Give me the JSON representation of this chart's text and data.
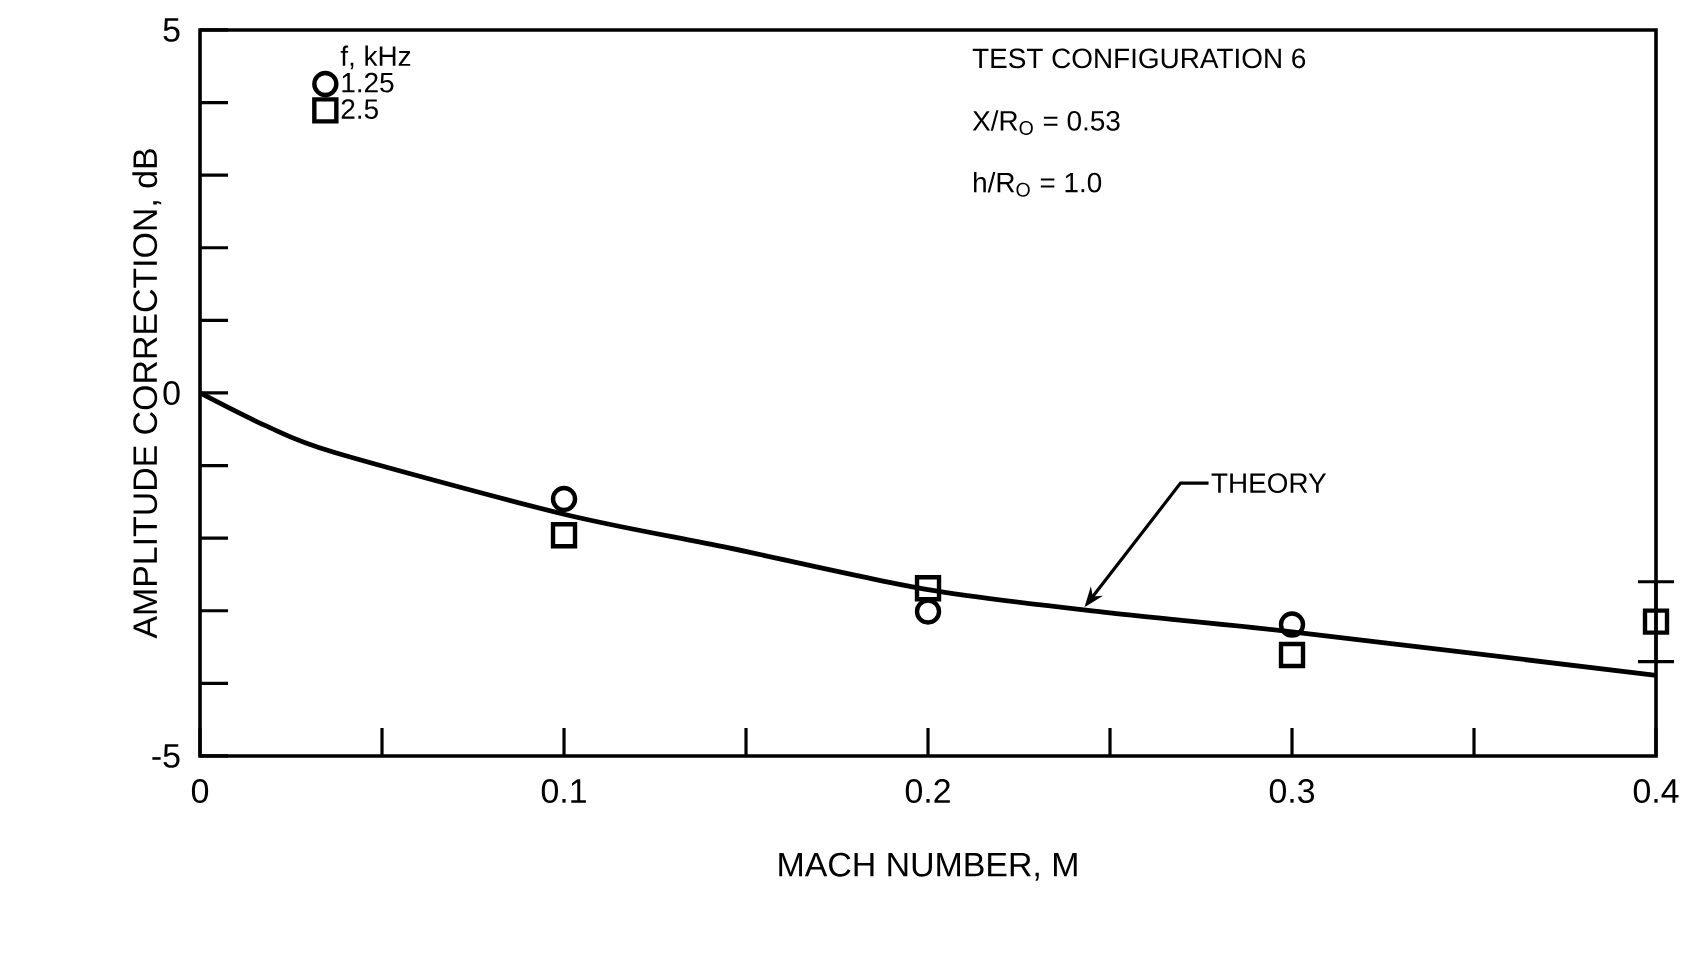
{
  "chart_data": {
    "type": "scatter",
    "xlabel": "MACH NUMBER, M",
    "ylabel": "AMPLITUDE CORRECTION, dB",
    "legend_title": "f, kHz",
    "xlim": [
      0,
      0.4
    ],
    "ylim": [
      -5,
      5
    ],
    "xticks": [
      0,
      {
        "value": 0.05,
        "label": null
      },
      0.1,
      {
        "value": 0.15,
        "label": null
      },
      0.2,
      {
        "value": 0.25,
        "label": null
      },
      0.3,
      {
        "value": 0.35,
        "label": null
      },
      0.4
    ],
    "yticks": [
      -5,
      {
        "value": -4,
        "label": null
      },
      {
        "value": -3,
        "label": null
      },
      {
        "value": -2,
        "label": null
      },
      {
        "value": -1,
        "label": null
      },
      0,
      {
        "value": 1,
        "label": null
      },
      {
        "value": 2,
        "label": null
      },
      {
        "value": 3,
        "label": null
      },
      {
        "value": 4,
        "label": null
      },
      5
    ],
    "legend": "top left",
    "grid": false,
    "series": [
      {
        "name": "1.25",
        "color": "#000000",
        "marker": "circle",
        "x": [
          0.1,
          0.2,
          0.3
        ],
        "values": [
          -1.46,
          -3.01,
          -3.19
        ]
      },
      {
        "name": "2.5",
        "color": "#000000",
        "marker": "square",
        "x": [
          0.1,
          0.2,
          0.3,
          0.4
        ],
        "values": [
          -1.96,
          -2.69,
          -3.61,
          -3.15
        ],
        "errors": [
          null,
          null,
          null,
          0.55
        ]
      },
      {
        "type": "line",
        "color": "#000000",
        "line_style": "solid",
        "x": [
          0,
          0.018,
          0.037,
          0.1,
          0.145,
          0.2,
          0.25,
          0.3,
          0.4
        ],
        "values": [
          0,
          -0.45,
          -0.82,
          -1.67,
          -2.13,
          -2.71,
          -3.03,
          -3.29,
          -3.89
        ]
      }
    ],
    "annotations": [
      {
        "text": "THEORY",
        "x": 0.243,
        "y": -2.95
      },
      "TEST CONFIGURATION 6",
      "X/R$_{O}$ = 0.53",
      "h/R$_{O}$ = 1.0"
    ]
  }
}
